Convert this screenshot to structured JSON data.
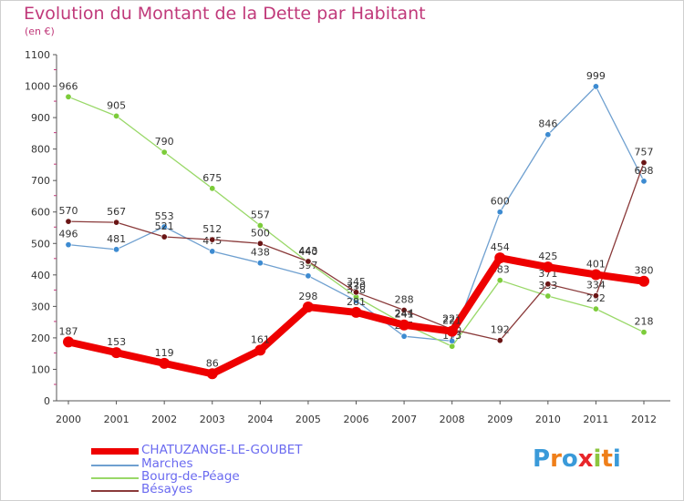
{
  "title": "Evolution du Montant de la Dette par Habitant",
  "unit": "(en €)",
  "logo": {
    "p": "P",
    "r": "r",
    "o": "o",
    "x": "x",
    "i": "i",
    "t": "t",
    "i2": "i"
  },
  "chart_data": {
    "type": "line",
    "title": "Evolution du Montant de la Dette par Habitant",
    "ylabel": "(en €)",
    "xlabel": "",
    "ylim": [
      0,
      1100
    ],
    "yticks": [
      0,
      100,
      200,
      300,
      400,
      500,
      600,
      700,
      800,
      900,
      1000,
      1100
    ],
    "grid": false,
    "categories": [
      "2000",
      "2001",
      "2002",
      "2003",
      "2004",
      "2005",
      "2006",
      "2007",
      "2008",
      "2009",
      "2010",
      "2011",
      "2012"
    ],
    "series": [
      {
        "name": "Marches",
        "color": "#6fa0d0",
        "marker": "#3d8bd1",
        "values": [
          496,
          481,
          553,
          475,
          438,
          397,
          318,
          205,
          190,
          600,
          846,
          999,
          698
        ]
      },
      {
        "name": "Bourg-de-Péage",
        "color": "#99d868",
        "marker": "#7ccc3a",
        "values": [
          966,
          905,
          790,
          675,
          557,
          440,
          330,
          244,
          173,
          383,
          333,
          292,
          218
        ]
      },
      {
        "name": "Bésayes",
        "color": "#8a3a3a",
        "marker": "#6a1515",
        "values": [
          570,
          567,
          521,
          512,
          500,
          443,
          345,
          288,
          227,
          192,
          371,
          334,
          757
        ]
      },
      {
        "name": "CHATUZANGE-LE-GOUBET",
        "color": "#ee0000",
        "marker": "#ee0000",
        "values": [
          187,
          153,
          119,
          86,
          161,
          298,
          281,
          241,
          221,
          454,
          425,
          401,
          380
        ]
      }
    ]
  }
}
